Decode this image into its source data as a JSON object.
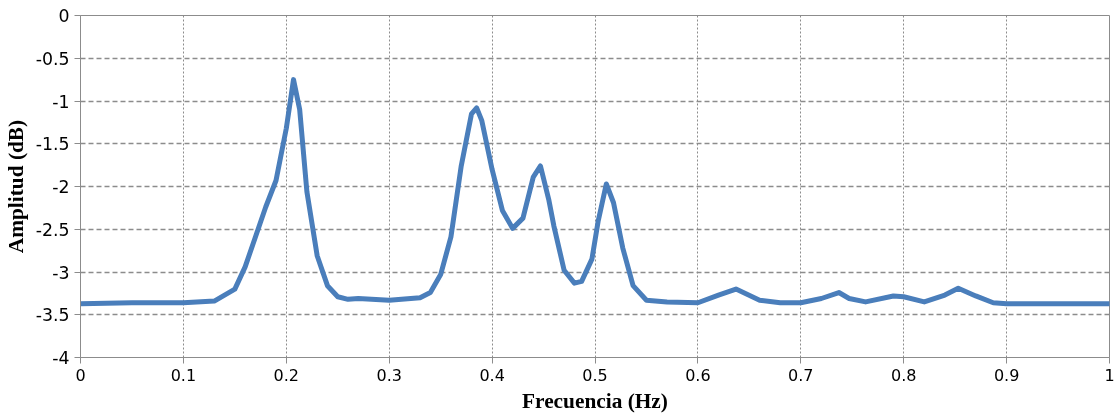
{
  "chart_data": {
    "type": "line",
    "xlabel": "Frecuencia (Hz)",
    "ylabel": "Amplitud (dB)",
    "xlim": [
      0,
      1
    ],
    "ylim": [
      -4,
      0
    ],
    "xticks": [
      0,
      0.1,
      0.2,
      0.3,
      0.4,
      0.5,
      0.6,
      0.7,
      0.8,
      0.9,
      1
    ],
    "yticks": [
      0,
      -0.5,
      -1,
      -1.5,
      -2,
      -2.5,
      -3,
      -3.5,
      -4
    ],
    "grid": true,
    "marker": "none",
    "line_style": "solid",
    "series": [
      {
        "color": "#4a7ebb",
        "x": [
          0,
          0.05,
          0.1,
          0.13,
          0.15,
          0.16,
          0.17,
          0.18,
          0.19,
          0.2,
          0.207,
          0.213,
          0.22,
          0.23,
          0.24,
          0.25,
          0.26,
          0.27,
          0.3,
          0.33,
          0.34,
          0.35,
          0.36,
          0.37,
          0.38,
          0.385,
          0.39,
          0.4,
          0.41,
          0.42,
          0.43,
          0.44,
          0.447,
          0.455,
          0.46,
          0.47,
          0.48,
          0.487,
          0.497,
          0.503,
          0.511,
          0.518,
          0.527,
          0.537,
          0.55,
          0.57,
          0.6,
          0.62,
          0.637,
          0.66,
          0.68,
          0.7,
          0.72,
          0.737,
          0.747,
          0.763,
          0.79,
          0.8,
          0.82,
          0.84,
          0.853,
          0.87,
          0.887,
          0.9,
          0.95,
          1
        ],
        "values": [
          -3.37,
          -3.36,
          -3.36,
          -3.34,
          -3.2,
          -2.94,
          -2.59,
          -2.24,
          -1.93,
          -1.32,
          -0.75,
          -1.1,
          -2.06,
          -2.81,
          -3.16,
          -3.29,
          -3.32,
          -3.31,
          -3.33,
          -3.3,
          -3.24,
          -3.03,
          -2.59,
          -1.76,
          -1.15,
          -1.08,
          -1.23,
          -1.8,
          -2.28,
          -2.49,
          -2.37,
          -1.89,
          -1.76,
          -2.15,
          -2.46,
          -2.98,
          -3.13,
          -3.11,
          -2.85,
          -2.41,
          -1.97,
          -2.19,
          -2.72,
          -3.16,
          -3.33,
          -3.35,
          -3.36,
          -3.27,
          -3.2,
          -3.33,
          -3.36,
          -3.36,
          -3.31,
          -3.24,
          -3.31,
          -3.35,
          -3.28,
          -3.29,
          -3.35,
          -3.27,
          -3.19,
          -3.28,
          -3.36,
          -3.37,
          -3.37,
          -3.37
        ]
      }
    ]
  }
}
